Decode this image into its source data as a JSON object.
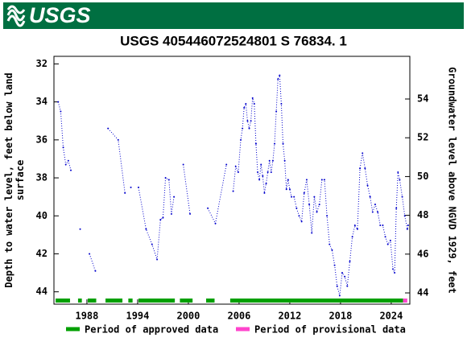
{
  "header": {
    "logo": "USGS"
  },
  "chart_data": {
    "type": "line",
    "title": "USGS 405446072524801 S 76834. 1",
    "ylabel": "Depth to water level, feet below land surface",
    "y2label": "Groundwater level above NGVD 1929, feet",
    "color": "#0000cc",
    "xlim": [
      1984.1,
      2026.2
    ],
    "xticks": [
      1988,
      1994,
      2000,
      2006,
      2012,
      2018,
      2024
    ],
    "ylim": [
      44.65,
      31.6
    ],
    "yticks": [
      32,
      34,
      36,
      38,
      40,
      42,
      44
    ],
    "y2lim": [
      43.42,
      56.2
    ],
    "y2ticks": [
      44,
      46,
      48,
      50,
      52,
      54
    ],
    "x": [
      1984.6,
      1984.9,
      1985.2,
      1985.5,
      1985.8,
      1986.1,
      null,
      1987.2,
      null,
      1988.3,
      1989.0,
      null,
      1990.5,
      1991.7,
      1992.5,
      null,
      1993.2,
      null,
      1994.1,
      1995.0,
      1995.7,
      1996.3,
      1996.7,
      1997.0,
      1997.3,
      1997.7,
      1998.0,
      1998.3,
      null,
      1999.4,
      2000.2,
      null,
      2002.3,
      2003.2,
      2004.5,
      null,
      2005.3,
      2005.6,
      2005.9,
      2006.2,
      2006.4,
      2006.6,
      2006.8,
      2007.0,
      2007.2,
      2007.4,
      2007.6,
      2007.8,
      2008.0,
      2008.2,
      2008.4,
      2008.6,
      2008.8,
      2009.0,
      2009.2,
      2009.4,
      2009.6,
      2009.8,
      2010.0,
      2010.2,
      2010.4,
      2010.6,
      2010.8,
      2011.0,
      2011.2,
      2011.4,
      2011.6,
      2011.8,
      2012.0,
      2012.2,
      2012.5,
      2012.8,
      2013.1,
      2013.4,
      2013.7,
      2014.0,
      2014.3,
      2014.6,
      2014.9,
      2015.2,
      2015.5,
      2015.8,
      2016.1,
      2016.4,
      2016.7,
      2017.0,
      2017.3,
      2017.6,
      2017.9,
      2018.2,
      2018.5,
      2018.8,
      2019.1,
      2019.4,
      2019.7,
      2020.0,
      2020.3,
      2020.6,
      2020.9,
      2021.2,
      2021.5,
      2021.8,
      2022.1,
      2022.4,
      2022.7,
      2023.0,
      2023.3,
      2023.6,
      2023.9,
      2024.2,
      2024.4,
      2024.6,
      2024.8,
      2025.0,
      2025.3,
      2025.6,
      2025.9,
      2026.0
    ],
    "values": [
      34.0,
      34.5,
      36.4,
      37.3,
      37.1,
      37.6,
      null,
      40.7,
      null,
      42.0,
      42.9,
      null,
      35.4,
      36.0,
      38.8,
      null,
      38.5,
      null,
      38.5,
      40.7,
      41.5,
      42.3,
      40.2,
      40.1,
      38.0,
      38.1,
      39.9,
      39.0,
      null,
      37.3,
      39.9,
      null,
      39.6,
      40.4,
      37.3,
      null,
      38.7,
      37.4,
      37.7,
      36.0,
      35.4,
      34.3,
      34.1,
      35.0,
      35.4,
      35.0,
      33.8,
      34.1,
      36.2,
      37.7,
      38.1,
      37.3,
      37.9,
      38.8,
      38.3,
      37.7,
      37.1,
      37.7,
      37.1,
      36.2,
      34.5,
      32.8,
      32.6,
      34.1,
      36.2,
      37.1,
      38.6,
      38.1,
      38.6,
      39.0,
      39.0,
      39.6,
      40.0,
      40.3,
      38.8,
      38.1,
      39.4,
      40.9,
      39.0,
      39.8,
      39.4,
      38.1,
      38.1,
      40.0,
      41.5,
      41.8,
      42.6,
      43.7,
      44.2,
      43.0,
      43.2,
      43.7,
      42.4,
      41.1,
      40.5,
      40.7,
      37.5,
      36.7,
      37.5,
      38.4,
      39.0,
      39.8,
      39.4,
      39.8,
      40.5,
      40.5,
      41.1,
      41.5,
      41.3,
      42.8,
      43.0,
      39.6,
      37.7,
      38.1,
      39.0,
      40.0,
      40.7,
      40.5
    ],
    "periods": [
      {
        "name": "Period of approved data",
        "color": "#00a000",
        "ranges": [
          [
            1984.3,
            1986.0
          ],
          [
            1986.95,
            1987.4
          ],
          [
            1988.1,
            1989.1
          ],
          [
            1990.2,
            1992.2
          ],
          [
            1992.9,
            1993.4
          ],
          [
            1994.1,
            1998.4
          ],
          [
            1999.0,
            2000.5
          ],
          [
            2002.1,
            2003.1
          ],
          [
            2004.95,
            2025.4
          ]
        ]
      },
      {
        "name": "Period of provisional data",
        "color": "#ff44cc",
        "ranges": [
          [
            2025.4,
            2025.9
          ]
        ]
      }
    ]
  }
}
